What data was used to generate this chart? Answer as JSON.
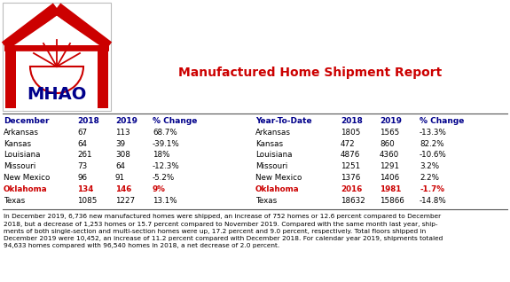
{
  "title": "Manufactured Home Shipment Report",
  "title_color": "#cc0000",
  "header_color": "#00008B",
  "highlight_color": "#cc0000",
  "normal_color": "#000000",
  "bg_color": "#ffffff",
  "dec_header": [
    "December",
    "2018",
    "2019",
    "% Change"
  ],
  "dec_states": [
    "Arkansas",
    "Kansas",
    "Louisiana",
    "Missouri",
    "New Mexico",
    "Oklahoma",
    "Texas"
  ],
  "dec_2018": [
    67,
    64,
    261,
    73,
    96,
    134,
    1085
  ],
  "dec_2019": [
    113,
    39,
    308,
    64,
    91,
    146,
    1227
  ],
  "dec_pct": [
    "68.7%",
    "-39.1%",
    "18%",
    "-12.3%",
    "-5.2%",
    "9%",
    "13.1%"
  ],
  "dec_highlight": [
    5
  ],
  "ytd_header": [
    "Year-To-Date",
    "2018",
    "2019",
    "% Change"
  ],
  "ytd_states": [
    "Arkansas",
    "Kansas",
    "Louisiana",
    "Missouri",
    "New Mexico",
    "Oklahoma",
    "Texas"
  ],
  "ytd_2018": [
    1805,
    472,
    4876,
    1251,
    1376,
    2016,
    18632
  ],
  "ytd_2019": [
    1565,
    860,
    4360,
    1291,
    1406,
    1981,
    15866
  ],
  "ytd_pct": [
    "-13.3%",
    "82.2%",
    "-10.6%",
    "3.2%",
    "2.2%",
    "-1.7%",
    "-14.8%"
  ],
  "ytd_highlight": [
    5
  ],
  "footnote": "In December 2019, 6,736 new manufactured homes were shipped, an increase of 752 homes or 12.6 percent compared to December\n2018, but a decrease of 1,253 homes or 15.7 percent compared to November 2019. Compared with the same month last year, ship-\nments of both single-section and multi-section homes were up, 17.2 percent and 9.0 percent, respectively. Total floors shipped in\nDecember 2019 were 10,452, an increase of 11.2 percent compared with December 2018. For calendar year 2019, shipments totaled\n94,633 homes compared with 96,540 homes in 2018, a net decrease of 2.0 percent."
}
